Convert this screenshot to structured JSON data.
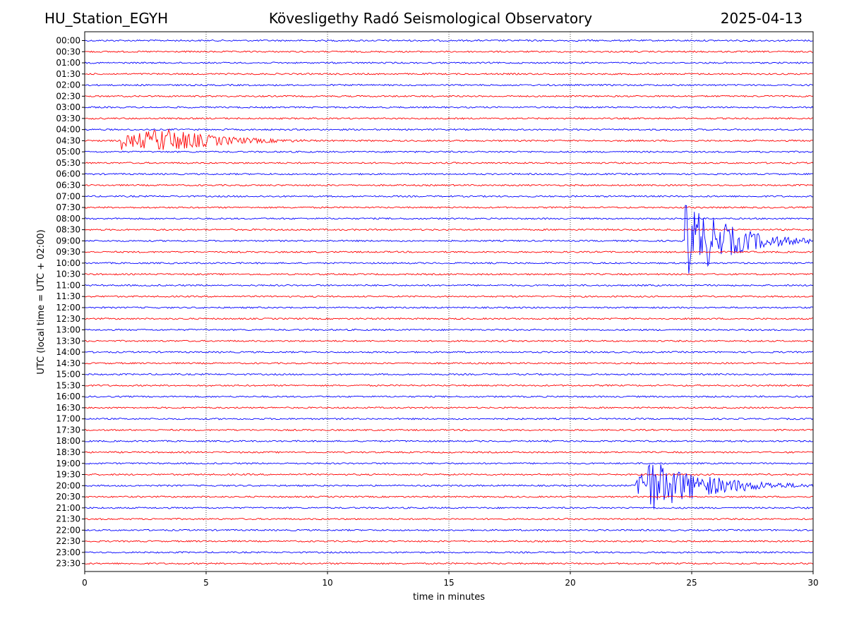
{
  "header": {
    "station": "HU_Station_EGYH",
    "observatory": "Kövesligethy Radó Seismological Observatory",
    "date": "2025-04-13"
  },
  "chart_data": {
    "type": "line",
    "title": "Kövesligethy Radó Seismological Observatory",
    "xlabel": "time in minutes",
    "ylabel": "UTC (local time = UTC + 02:00)",
    "xlim": [
      0,
      30
    ],
    "xticks": [
      0,
      5,
      10,
      15,
      20,
      25,
      30
    ],
    "grid": "vertical dotted at x ticks",
    "colors": [
      "#0000ff",
      "#ff0000"
    ],
    "rows": [
      "00:00",
      "00:30",
      "01:00",
      "01:30",
      "02:00",
      "02:30",
      "03:00",
      "03:30",
      "04:00",
      "04:30",
      "05:00",
      "05:30",
      "06:00",
      "06:30",
      "07:00",
      "07:30",
      "08:00",
      "08:30",
      "09:00",
      "09:30",
      "10:00",
      "10:30",
      "11:00",
      "11:30",
      "12:00",
      "12:30",
      "13:00",
      "13:30",
      "14:00",
      "14:30",
      "15:00",
      "15:30",
      "16:00",
      "16:30",
      "17:00",
      "17:30",
      "18:00",
      "18:30",
      "19:00",
      "19:30",
      "20:00",
      "20:30",
      "21:00",
      "21:30",
      "22:00",
      "22:30",
      "23:00",
      "23:30"
    ],
    "events": [
      {
        "row": "04:30",
        "start_min": 1.5,
        "peak_min": 3.3,
        "end_min": 10.0,
        "amplitude": 18
      },
      {
        "row": "09:00",
        "start_min": 24.7,
        "peak_min": 24.7,
        "end_min": 30.0,
        "amplitude": 60
      },
      {
        "row": "20:00",
        "start_min": 22.7,
        "peak_min": 23.2,
        "end_min": 30.0,
        "amplitude": 40
      }
    ]
  }
}
